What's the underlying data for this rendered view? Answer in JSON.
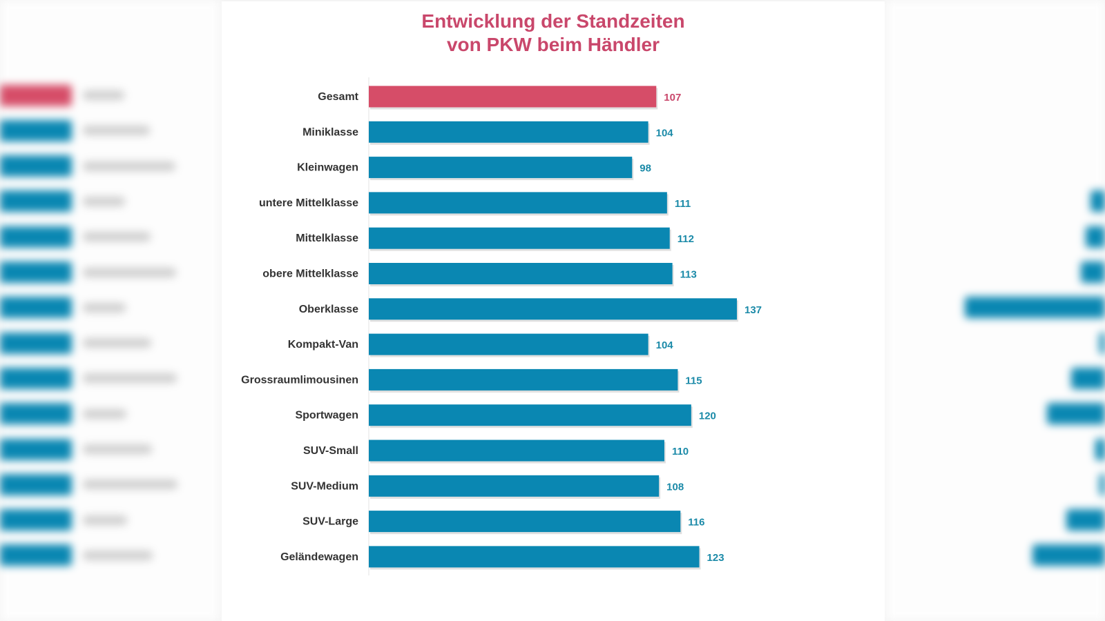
{
  "chart_data": {
    "type": "bar",
    "orientation": "horizontal",
    "title": "Entwicklung der Standzeiten von PKW beim Händler",
    "title_lines": [
      "Entwicklung der Standzeiten",
      "von PKW beim Händler"
    ],
    "categories": [
      "Gesamt",
      "Miniklasse",
      "Kleinwagen",
      "untere Mittelklasse",
      "Mittelklasse",
      "obere Mittelklasse",
      "Oberklasse",
      "Kompakt-Van",
      "Grossraumlimousinen",
      "Sportwagen",
      "SUV-Small",
      "SUV-Medium",
      "SUV-Large",
      "Geländewagen"
    ],
    "values": [
      107,
      104,
      98,
      111,
      112,
      113,
      137,
      104,
      115,
      120,
      110,
      108,
      116,
      123
    ],
    "highlight_index": 0,
    "xlim": [
      0,
      137
    ],
    "grid": false,
    "data_labels": true,
    "colors": {
      "highlight": "#d64d68",
      "bar": "#0a87b2",
      "title": "#c9476b",
      "value_label": "#1b8aa8",
      "highlight_label": "#c9476b"
    }
  }
}
